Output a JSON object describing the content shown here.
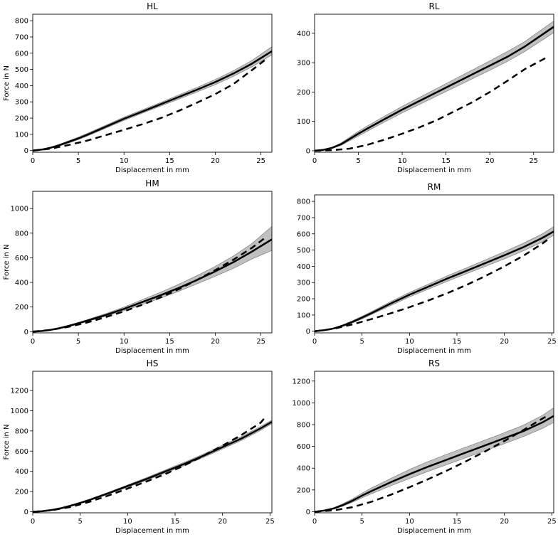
{
  "chart_data": [
    {
      "type": "line",
      "title": "HL",
      "xlabel": "Displacement in mm",
      "ylabel": "Force in N",
      "xlim": [
        0,
        26.2
      ],
      "ylim": [
        -10,
        840
      ],
      "xticks": [
        0,
        5,
        10,
        15,
        20,
        25
      ],
      "yticks": [
        0,
        100,
        200,
        300,
        400,
        500,
        600,
        700,
        800
      ],
      "series": [
        {
          "name": "mean",
          "style": "solid",
          "x": [
            0,
            1,
            2,
            3,
            4,
            5,
            6,
            8,
            10,
            12,
            14,
            16,
            18,
            20,
            22,
            24,
            26.2
          ],
          "values": [
            0,
            6,
            18,
            35,
            55,
            75,
            98,
            147,
            196,
            240,
            285,
            330,
            375,
            422,
            475,
            535,
            612
          ]
        },
        {
          "name": "band_lower",
          "style": "band",
          "x": [
            0,
            1,
            2,
            3,
            4,
            5,
            6,
            8,
            10,
            12,
            14,
            16,
            18,
            20,
            22,
            24,
            26.2
          ],
          "values": [
            0,
            5,
            15,
            30,
            48,
            68,
            90,
            138,
            186,
            230,
            274,
            317,
            361,
            406,
            458,
            515,
            590
          ]
        },
        {
          "name": "band_upper",
          "style": "band",
          "x": [
            0,
            1,
            2,
            3,
            4,
            5,
            6,
            8,
            10,
            12,
            14,
            16,
            18,
            20,
            22,
            24,
            26.2
          ],
          "values": [
            0,
            7,
            21,
            40,
            62,
            83,
            106,
            156,
            206,
            251,
            296,
            343,
            389,
            438,
            492,
            555,
            640
          ]
        },
        {
          "name": "model",
          "style": "dashed",
          "x": [
            0,
            2,
            4,
            6,
            8,
            10,
            12,
            14,
            16,
            18,
            20,
            22,
            24,
            25.5
          ],
          "values": [
            0,
            12,
            35,
            62,
            95,
            128,
            162,
            200,
            245,
            295,
            348,
            410,
            495,
            560
          ]
        }
      ]
    },
    {
      "type": "line",
      "title": "RL",
      "xlabel": "Displacement in mm",
      "ylabel": "",
      "xlim": [
        0,
        27.3
      ],
      "ylim": [
        -5,
        465
      ],
      "xticks": [
        0,
        5,
        10,
        15,
        20,
        25
      ],
      "yticks": [
        0,
        100,
        200,
        300,
        400
      ],
      "series": [
        {
          "name": "mean",
          "style": "solid",
          "x": [
            0,
            1,
            2,
            3,
            4,
            5,
            6,
            8,
            10,
            12,
            14,
            16,
            18,
            20,
            22,
            24,
            27.3
          ],
          "values": [
            0,
            3,
            10,
            22,
            40,
            58,
            75,
            108,
            140,
            170,
            200,
            230,
            260,
            290,
            320,
            355,
            422
          ]
        },
        {
          "name": "band_lower",
          "style": "band",
          "x": [
            0,
            1,
            2,
            3,
            4,
            5,
            6,
            8,
            10,
            12,
            14,
            16,
            18,
            20,
            22,
            24,
            27.3
          ],
          "values": [
            0,
            2,
            8,
            18,
            34,
            50,
            66,
            98,
            129,
            158,
            187,
            216,
            245,
            274,
            304,
            338,
            402
          ]
        },
        {
          "name": "band_upper",
          "style": "band",
          "x": [
            0,
            1,
            2,
            3,
            4,
            5,
            6,
            8,
            10,
            12,
            14,
            16,
            18,
            20,
            22,
            24,
            27.3
          ],
          "values": [
            0,
            4,
            12,
            26,
            46,
            66,
            84,
            118,
            151,
            182,
            213,
            244,
            275,
            306,
            338,
            372,
            442
          ]
        },
        {
          "name": "model",
          "style": "dashed",
          "x": [
            0,
            2,
            4,
            6,
            8,
            10,
            12,
            14,
            16,
            18,
            20,
            22,
            24,
            26.5
          ],
          "values": [
            0,
            2,
            7,
            20,
            38,
            58,
            80,
            105,
            135,
            165,
            200,
            238,
            278,
            318
          ]
        }
      ]
    },
    {
      "type": "line",
      "title": "HM",
      "xlabel": "Displacement in mm",
      "ylabel": "Force in N",
      "xlim": [
        0,
        26.2
      ],
      "ylim": [
        -10,
        1140
      ],
      "xticks": [
        0,
        5,
        10,
        15,
        20,
        25
      ],
      "yticks": [
        0,
        200,
        400,
        600,
        800,
        1000
      ],
      "series": [
        {
          "name": "mean",
          "style": "solid",
          "x": [
            0,
            1,
            2,
            3,
            4,
            5,
            6,
            8,
            10,
            12,
            14,
            16,
            18,
            20,
            22,
            24,
            26.2
          ],
          "values": [
            0,
            5,
            15,
            30,
            48,
            68,
            90,
            135,
            185,
            240,
            295,
            355,
            420,
            490,
            565,
            650,
            750
          ]
        },
        {
          "name": "band_lower",
          "style": "band",
          "x": [
            0,
            1,
            2,
            3,
            4,
            5,
            6,
            8,
            10,
            12,
            14,
            16,
            18,
            20,
            22,
            24,
            26.2
          ],
          "values": [
            0,
            4,
            13,
            26,
            43,
            62,
            83,
            125,
            170,
            220,
            272,
            328,
            388,
            450,
            515,
            590,
            660
          ]
        },
        {
          "name": "band_upper",
          "style": "band",
          "x": [
            0,
            1,
            2,
            3,
            4,
            5,
            6,
            8,
            10,
            12,
            14,
            16,
            18,
            20,
            22,
            24,
            26.2
          ],
          "values": [
            0,
            6,
            17,
            34,
            54,
            75,
            98,
            146,
            200,
            260,
            320,
            385,
            455,
            530,
            615,
            715,
            855
          ]
        },
        {
          "name": "model",
          "style": "dashed",
          "x": [
            0,
            2,
            4,
            6,
            8,
            10,
            12,
            14,
            16,
            18,
            20,
            22,
            24,
            25.5
          ],
          "values": [
            0,
            14,
            40,
            75,
            118,
            165,
            218,
            278,
            345,
            420,
            500,
            585,
            680,
            765
          ]
        }
      ]
    },
    {
      "type": "line",
      "title": "RM",
      "xlabel": "Displacement in mm",
      "ylabel": "",
      "xlim": [
        0,
        25.2
      ],
      "ylim": [
        -10,
        840
      ],
      "xticks": [
        0,
        5,
        10,
        15,
        20,
        25
      ],
      "yticks": [
        0,
        100,
        200,
        300,
        400,
        500,
        600,
        700,
        800
      ],
      "series": [
        {
          "name": "mean",
          "style": "solid",
          "x": [
            0,
            1,
            2,
            3,
            4,
            5,
            6,
            8,
            10,
            12,
            14,
            16,
            18,
            20,
            22,
            24,
            25.2
          ],
          "values": [
            0,
            6,
            17,
            35,
            58,
            84,
            112,
            170,
            225,
            275,
            325,
            372,
            420,
            468,
            518,
            575,
            615
          ]
        },
        {
          "name": "band_lower",
          "style": "band",
          "x": [
            0,
            1,
            2,
            3,
            4,
            5,
            6,
            8,
            10,
            12,
            14,
            16,
            18,
            20,
            22,
            24,
            25.2
          ],
          "values": [
            0,
            5,
            14,
            30,
            51,
            76,
            103,
            158,
            211,
            260,
            308,
            354,
            400,
            446,
            495,
            550,
            592
          ]
        },
        {
          "name": "band_upper",
          "style": "band",
          "x": [
            0,
            1,
            2,
            3,
            4,
            5,
            6,
            8,
            10,
            12,
            14,
            16,
            18,
            20,
            22,
            24,
            25.2
          ],
          "values": [
            0,
            7,
            20,
            40,
            65,
            92,
            121,
            182,
            239,
            290,
            342,
            390,
            440,
            490,
            542,
            600,
            645
          ]
        },
        {
          "name": "model",
          "style": "dashed",
          "x": [
            0,
            2,
            4,
            6,
            8,
            10,
            12,
            14,
            16,
            18,
            20,
            22,
            24,
            24.8
          ],
          "values": [
            0,
            15,
            42,
            75,
            110,
            148,
            190,
            235,
            285,
            340,
            400,
            465,
            540,
            575
          ]
        }
      ]
    },
    {
      "type": "line",
      "title": "HS",
      "xlabel": "Displacement in mm",
      "ylabel": "Force in N",
      "xlim": [
        0,
        25.2
      ],
      "ylim": [
        -10,
        1390
      ],
      "xticks": [
        0,
        5,
        10,
        15,
        20,
        25
      ],
      "yticks": [
        0,
        200,
        400,
        600,
        800,
        1000,
        1200
      ],
      "series": [
        {
          "name": "mean",
          "style": "solid",
          "x": [
            0,
            1,
            2,
            3,
            4,
            5,
            6,
            8,
            10,
            12,
            14,
            16,
            18,
            20,
            22,
            24,
            25.2
          ],
          "values": [
            0,
            6,
            18,
            36,
            60,
            88,
            118,
            185,
            255,
            325,
            400,
            475,
            555,
            640,
            725,
            825,
            890
          ]
        },
        {
          "name": "band_lower",
          "style": "band",
          "x": [
            0,
            1,
            2,
            3,
            4,
            5,
            6,
            8,
            10,
            12,
            14,
            16,
            18,
            20,
            22,
            24,
            25.2
          ],
          "values": [
            0,
            5,
            16,
            33,
            55,
            82,
            111,
            176,
            244,
            312,
            385,
            459,
            538,
            622,
            706,
            805,
            872
          ]
        },
        {
          "name": "band_upper",
          "style": "band",
          "x": [
            0,
            1,
            2,
            3,
            4,
            5,
            6,
            8,
            10,
            12,
            14,
            16,
            18,
            20,
            22,
            24,
            25.2
          ],
          "values": [
            0,
            7,
            20,
            40,
            65,
            94,
            125,
            194,
            266,
            338,
            415,
            491,
            572,
            658,
            744,
            845,
            908
          ]
        },
        {
          "name": "model",
          "style": "dashed",
          "x": [
            0,
            2,
            4,
            6,
            8,
            10,
            12,
            14,
            16,
            18,
            20,
            22,
            24,
            24.5
          ],
          "values": [
            0,
            15,
            48,
            100,
            162,
            230,
            300,
            375,
            460,
            555,
            655,
            760,
            880,
            935
          ]
        }
      ]
    },
    {
      "type": "line",
      "title": "RS",
      "xlabel": "Displacement in mm",
      "ylabel": "",
      "xlim": [
        0,
        25.2
      ],
      "ylim": [
        -10,
        1290
      ],
      "xticks": [
        0,
        5,
        10,
        15,
        20,
        25
      ],
      "yticks": [
        0,
        200,
        400,
        600,
        800,
        1000,
        1200
      ],
      "series": [
        {
          "name": "mean",
          "style": "solid",
          "x": [
            0,
            1,
            2,
            3,
            4,
            5,
            6,
            8,
            10,
            12,
            14,
            16,
            18,
            20,
            22,
            24,
            25.2
          ],
          "values": [
            0,
            10,
            30,
            62,
            102,
            148,
            190,
            270,
            345,
            415,
            480,
            545,
            610,
            675,
            740,
            820,
            880
          ]
        },
        {
          "name": "band_lower",
          "style": "band",
          "x": [
            0,
            1,
            2,
            3,
            4,
            5,
            6,
            8,
            10,
            12,
            14,
            16,
            18,
            20,
            22,
            24,
            25.2
          ],
          "values": [
            0,
            8,
            25,
            52,
            88,
            128,
            165,
            237,
            305,
            372,
            435,
            498,
            560,
            625,
            690,
            765,
            820
          ]
        },
        {
          "name": "band_upper",
          "style": "band",
          "x": [
            0,
            1,
            2,
            3,
            4,
            5,
            6,
            8,
            10,
            12,
            14,
            16,
            18,
            20,
            22,
            24,
            25.2
          ],
          "values": [
            0,
            12,
            36,
            74,
            118,
            170,
            218,
            305,
            388,
            462,
            530,
            595,
            660,
            725,
            795,
            885,
            955
          ]
        },
        {
          "name": "model",
          "style": "dashed",
          "x": [
            0,
            2,
            4,
            6,
            8,
            10,
            12,
            14,
            16,
            18,
            20,
            22,
            24,
            24.5
          ],
          "values": [
            0,
            12,
            42,
            92,
            155,
            225,
            300,
            380,
            465,
            555,
            650,
            750,
            855,
            880
          ]
        }
      ]
    }
  ]
}
